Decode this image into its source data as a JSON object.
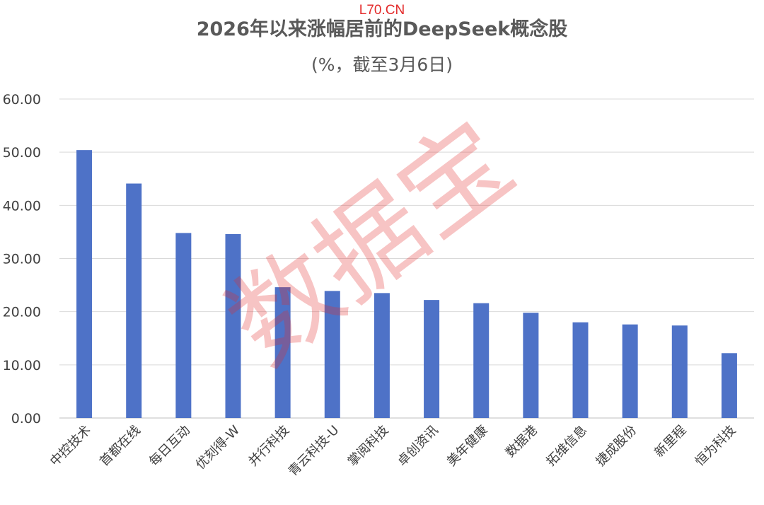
{
  "watermarks": {
    "top": "L70.CN",
    "center": "数据宝"
  },
  "chart_data": {
    "type": "bar",
    "title": "2026年以来涨幅居前的DeepSeek概念股",
    "subtitle": "(%，截至3月6日)",
    "categories": [
      "中控技术",
      "首都在线",
      "每日互动",
      "优刻得-W",
      "并行科技",
      "青云科技-U",
      "掌阅科技",
      "卓创资讯",
      "美年健康",
      "数据港",
      "拓维信息",
      "捷成股份",
      "新里程",
      "恒为科技"
    ],
    "values": [
      50.4,
      44.1,
      34.8,
      34.6,
      24.6,
      23.9,
      23.5,
      22.2,
      21.6,
      19.8,
      18.0,
      17.6,
      17.4,
      12.2
    ],
    "y_ticks": [
      "0.00",
      "10.00",
      "20.00",
      "30.00",
      "40.00",
      "50.00",
      "60.00"
    ],
    "ylim": [
      0,
      60
    ],
    "grid": true,
    "colors": {
      "bar": "#4e72c7",
      "grid": "#d9d9d9",
      "axis": "#bfbfbf",
      "title": "#595959",
      "tick": "#404040",
      "watermark": "#e32a2a"
    }
  }
}
